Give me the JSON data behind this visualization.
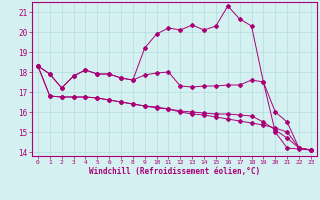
{
  "xlabel": "Windchill (Refroidissement éolien,°C)",
  "bg_color": "#d4f0f0",
  "grid_color": "#b8e0e0",
  "line_color": "#aa0077",
  "xlim": [
    -0.5,
    23.5
  ],
  "ylim": [
    13.8,
    21.5
  ],
  "yticks": [
    14,
    15,
    16,
    17,
    18,
    19,
    20,
    21
  ],
  "xticks": [
    0,
    1,
    2,
    3,
    4,
    5,
    6,
    7,
    8,
    9,
    10,
    11,
    12,
    13,
    14,
    15,
    16,
    17,
    18,
    19,
    20,
    21,
    22,
    23
  ],
  "line1": [
    18.3,
    17.9,
    17.2,
    17.8,
    18.1,
    17.9,
    17.9,
    17.7,
    17.6,
    19.2,
    19.9,
    20.2,
    20.1,
    20.35,
    20.1,
    20.3,
    21.3,
    20.65,
    20.3,
    17.5,
    15.0,
    14.2,
    14.15,
    14.1
  ],
  "line2": [
    18.3,
    17.9,
    17.2,
    17.8,
    18.1,
    17.9,
    17.9,
    17.7,
    17.6,
    17.85,
    17.95,
    18.0,
    17.3,
    17.25,
    17.3,
    17.3,
    17.35,
    17.35,
    17.6,
    17.5,
    16.0,
    15.5,
    14.2,
    14.1
  ],
  "line3": [
    18.3,
    16.8,
    16.75,
    16.75,
    16.75,
    16.7,
    16.6,
    16.5,
    16.4,
    16.3,
    16.2,
    16.15,
    16.0,
    15.9,
    15.85,
    15.75,
    15.65,
    15.55,
    15.45,
    15.35,
    15.2,
    15.0,
    14.2,
    14.1
  ],
  "line4": [
    18.3,
    16.8,
    16.75,
    16.75,
    16.75,
    16.7,
    16.6,
    16.5,
    16.4,
    16.3,
    16.25,
    16.15,
    16.05,
    16.0,
    15.95,
    15.9,
    15.9,
    15.85,
    15.8,
    15.5,
    15.1,
    14.7,
    14.2,
    14.1
  ]
}
